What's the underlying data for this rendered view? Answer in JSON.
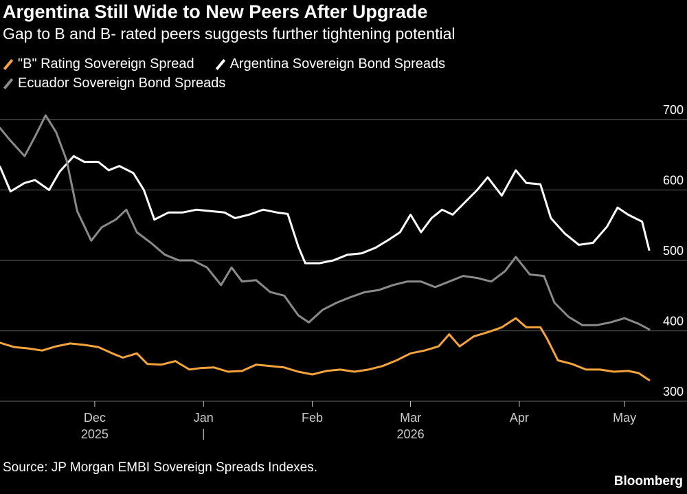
{
  "title": "Argentina Still Wide to New Peers After Upgrade",
  "subtitle": "Gap to B and B- rated peers suggests further tightening potential",
  "source": "Source: JP Morgan EMBI Sovereign Spreads Indexes.",
  "brand": "Bloomberg",
  "colors": {
    "background": "#000000",
    "grid": "#555555",
    "text": "#ffffff",
    "axis_text": "#cccccc"
  },
  "chart_data": {
    "type": "line",
    "x_unit": "date",
    "xlim": [
      "2025-11-04",
      "2026-05-09"
    ],
    "ylim": [
      300,
      720
    ],
    "yticks": [
      300,
      400,
      500,
      600,
      700
    ],
    "y_axis_position": "right",
    "grid": true,
    "legend": "top-left",
    "xticks": [
      {
        "date": "2025-12-01",
        "label": "Dec"
      },
      {
        "date": "2026-01-01",
        "label": "Jan"
      },
      {
        "date": "2026-02-01",
        "label": "Feb"
      },
      {
        "date": "2026-03-01",
        "label": "Mar"
      },
      {
        "date": "2026-04-01",
        "label": "Apr"
      },
      {
        "date": "2026-05-01",
        "label": "May"
      }
    ],
    "year_labels": [
      {
        "date": "2025-12-01",
        "label": "2025"
      },
      {
        "date": "2026-03-01",
        "label": "2026"
      }
    ],
    "year_separator_date": "2026-01-01",
    "series": [
      {
        "name": "\"B\" Rating Sovereign Spread",
        "color": "#f5a33a",
        "points": [
          [
            "2025-11-04",
            383
          ],
          [
            "2025-11-08",
            377
          ],
          [
            "2025-11-12",
            375
          ],
          [
            "2025-11-16",
            372
          ],
          [
            "2025-11-20",
            378
          ],
          [
            "2025-11-24",
            382
          ],
          [
            "2025-11-28",
            380
          ],
          [
            "2025-12-02",
            377
          ],
          [
            "2025-12-06",
            368
          ],
          [
            "2025-12-09",
            362
          ],
          [
            "2025-12-13",
            368
          ],
          [
            "2025-12-16",
            353
          ],
          [
            "2025-12-20",
            352
          ],
          [
            "2025-12-24",
            357
          ],
          [
            "2025-12-28",
            345
          ],
          [
            "2025-12-31",
            347
          ],
          [
            "2026-01-04",
            348
          ],
          [
            "2026-01-08",
            342
          ],
          [
            "2026-01-12",
            343
          ],
          [
            "2026-01-16",
            352
          ],
          [
            "2026-01-20",
            350
          ],
          [
            "2026-01-24",
            348
          ],
          [
            "2026-01-28",
            342
          ],
          [
            "2026-02-01",
            338
          ],
          [
            "2026-02-05",
            343
          ],
          [
            "2026-02-09",
            345
          ],
          [
            "2026-02-13",
            342
          ],
          [
            "2026-02-17",
            345
          ],
          [
            "2026-02-21",
            350
          ],
          [
            "2026-02-25",
            358
          ],
          [
            "2026-03-01",
            368
          ],
          [
            "2026-03-05",
            372
          ],
          [
            "2026-03-09",
            378
          ],
          [
            "2026-03-12",
            395
          ],
          [
            "2026-03-15",
            378
          ],
          [
            "2026-03-19",
            392
          ],
          [
            "2026-03-23",
            398
          ],
          [
            "2026-03-27",
            405
          ],
          [
            "2026-03-31",
            418
          ],
          [
            "2026-04-03",
            405
          ],
          [
            "2026-04-07",
            405
          ],
          [
            "2026-04-09",
            388
          ],
          [
            "2026-04-12",
            358
          ],
          [
            "2026-04-16",
            353
          ],
          [
            "2026-04-20",
            345
          ],
          [
            "2026-04-24",
            345
          ],
          [
            "2026-04-28",
            342
          ],
          [
            "2026-05-02",
            343
          ],
          [
            "2026-05-05",
            340
          ],
          [
            "2026-05-08",
            330
          ]
        ]
      },
      {
        "name": "Argentina Sovereign Bond Spreads",
        "color": "#ffffff",
        "points": [
          [
            "2025-11-04",
            633
          ],
          [
            "2025-11-07",
            598
          ],
          [
            "2025-11-11",
            610
          ],
          [
            "2025-11-14",
            614
          ],
          [
            "2025-11-18",
            600
          ],
          [
            "2025-11-21",
            626
          ],
          [
            "2025-11-25",
            648
          ],
          [
            "2025-11-28",
            640
          ],
          [
            "2025-12-02",
            640
          ],
          [
            "2025-12-05",
            628
          ],
          [
            "2025-12-08",
            634
          ],
          [
            "2025-12-12",
            624
          ],
          [
            "2025-12-15",
            600
          ],
          [
            "2025-12-18",
            558
          ],
          [
            "2025-12-22",
            568
          ],
          [
            "2025-12-26",
            568
          ],
          [
            "2025-12-30",
            572
          ],
          [
            "2026-01-03",
            570
          ],
          [
            "2026-01-07",
            568
          ],
          [
            "2026-01-10",
            560
          ],
          [
            "2026-01-14",
            565
          ],
          [
            "2026-01-18",
            572
          ],
          [
            "2026-01-22",
            568
          ],
          [
            "2026-01-25",
            566
          ],
          [
            "2026-01-28",
            520
          ],
          [
            "2026-01-30",
            496
          ],
          [
            "2026-02-03",
            496
          ],
          [
            "2026-02-07",
            500
          ],
          [
            "2026-02-11",
            508
          ],
          [
            "2026-02-15",
            510
          ],
          [
            "2026-02-19",
            518
          ],
          [
            "2026-02-23",
            530
          ],
          [
            "2026-02-26",
            540
          ],
          [
            "2026-03-01",
            565
          ],
          [
            "2026-03-04",
            540
          ],
          [
            "2026-03-07",
            560
          ],
          [
            "2026-03-10",
            572
          ],
          [
            "2026-03-13",
            565
          ],
          [
            "2026-03-16",
            580
          ],
          [
            "2026-03-20",
            600
          ],
          [
            "2026-03-23",
            618
          ],
          [
            "2026-03-27",
            592
          ],
          [
            "2026-03-31",
            628
          ],
          [
            "2026-04-03",
            610
          ],
          [
            "2026-04-07",
            608
          ],
          [
            "2026-04-10",
            560
          ],
          [
            "2026-04-14",
            538
          ],
          [
            "2026-04-18",
            522
          ],
          [
            "2026-04-22",
            525
          ],
          [
            "2026-04-26",
            548
          ],
          [
            "2026-04-29",
            575
          ],
          [
            "2026-05-02",
            565
          ],
          [
            "2026-05-06",
            555
          ],
          [
            "2026-05-08",
            515
          ]
        ]
      },
      {
        "name": "Ecuador Sovereign Bond Spreads",
        "color": "#8a8a8a",
        "points": [
          [
            "2025-11-04",
            688
          ],
          [
            "2025-11-07",
            670
          ],
          [
            "2025-11-11",
            648
          ],
          [
            "2025-11-14",
            676
          ],
          [
            "2025-11-17",
            706
          ],
          [
            "2025-11-20",
            682
          ],
          [
            "2025-11-23",
            642
          ],
          [
            "2025-11-26",
            570
          ],
          [
            "2025-11-30",
            528
          ],
          [
            "2025-12-03",
            547
          ],
          [
            "2025-12-07",
            558
          ],
          [
            "2025-12-10",
            572
          ],
          [
            "2025-12-13",
            540
          ],
          [
            "2025-12-17",
            525
          ],
          [
            "2025-12-21",
            508
          ],
          [
            "2025-12-25",
            500
          ],
          [
            "2025-12-29",
            500
          ],
          [
            "2026-01-02",
            490
          ],
          [
            "2026-01-06",
            465
          ],
          [
            "2026-01-09",
            490
          ],
          [
            "2026-01-12",
            470
          ],
          [
            "2026-01-16",
            472
          ],
          [
            "2026-01-20",
            455
          ],
          [
            "2026-01-24",
            450
          ],
          [
            "2026-01-28",
            422
          ],
          [
            "2026-01-31",
            412
          ],
          [
            "2026-02-04",
            430
          ],
          [
            "2026-02-08",
            440
          ],
          [
            "2026-02-12",
            448
          ],
          [
            "2026-02-16",
            455
          ],
          [
            "2026-02-20",
            458
          ],
          [
            "2026-02-24",
            465
          ],
          [
            "2026-02-28",
            470
          ],
          [
            "2026-03-04",
            470
          ],
          [
            "2026-03-08",
            462
          ],
          [
            "2026-03-12",
            470
          ],
          [
            "2026-03-16",
            478
          ],
          [
            "2026-03-20",
            475
          ],
          [
            "2026-03-24",
            470
          ],
          [
            "2026-03-28",
            485
          ],
          [
            "2026-03-31",
            505
          ],
          [
            "2026-04-04",
            480
          ],
          [
            "2026-04-08",
            478
          ],
          [
            "2026-04-11",
            440
          ],
          [
            "2026-04-15",
            420
          ],
          [
            "2026-04-19",
            408
          ],
          [
            "2026-04-23",
            408
          ],
          [
            "2026-04-27",
            412
          ],
          [
            "2026-05-01",
            418
          ],
          [
            "2026-05-05",
            410
          ],
          [
            "2026-05-08",
            402
          ]
        ]
      }
    ]
  }
}
